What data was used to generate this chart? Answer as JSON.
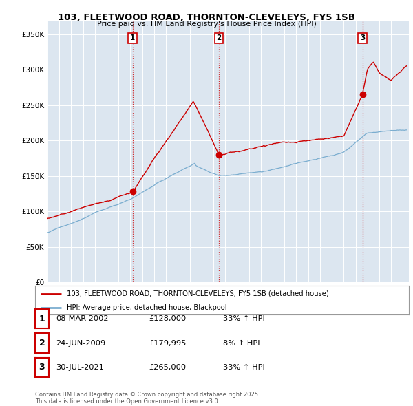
{
  "title": "103, FLEETWOOD ROAD, THORNTON-CLEVELEYS, FY5 1SB",
  "subtitle": "Price paid vs. HM Land Registry's House Price Index (HPI)",
  "ylim": [
    0,
    370000
  ],
  "yticks": [
    0,
    50000,
    100000,
    150000,
    200000,
    250000,
    300000,
    350000
  ],
  "ytick_labels": [
    "£0",
    "£50K",
    "£100K",
    "£150K",
    "£200K",
    "£250K",
    "£300K",
    "£350K"
  ],
  "sale_dates": [
    2002.18,
    2009.48,
    2021.58
  ],
  "sale_prices": [
    128000,
    179995,
    265000
  ],
  "sale_labels": [
    "1",
    "2",
    "3"
  ],
  "vline_color": "#cc0000",
  "vline_style": ":",
  "sale_marker_color": "#cc0000",
  "legend_line1": "103, FLEETWOOD ROAD, THORNTON-CLEVELEYS, FY5 1SB (detached house)",
  "legend_line2": "HPI: Average price, detached house, Blackpool",
  "table_rows": [
    {
      "num": "1",
      "date": "08-MAR-2002",
      "price": "£128,000",
      "change": "33% ↑ HPI"
    },
    {
      "num": "2",
      "date": "24-JUN-2009",
      "price": "£179,995",
      "change": "8% ↑ HPI"
    },
    {
      "num": "3",
      "date": "30-JUL-2021",
      "price": "£265,000",
      "change": "33% ↑ HPI"
    }
  ],
  "footnote": "Contains HM Land Registry data © Crown copyright and database right 2025.\nThis data is licensed under the Open Government Licence v3.0.",
  "red_line_color": "#cc0000",
  "blue_line_color": "#7aadcf",
  "background_color": "#ffffff",
  "plot_bg_color": "#dce6f0"
}
